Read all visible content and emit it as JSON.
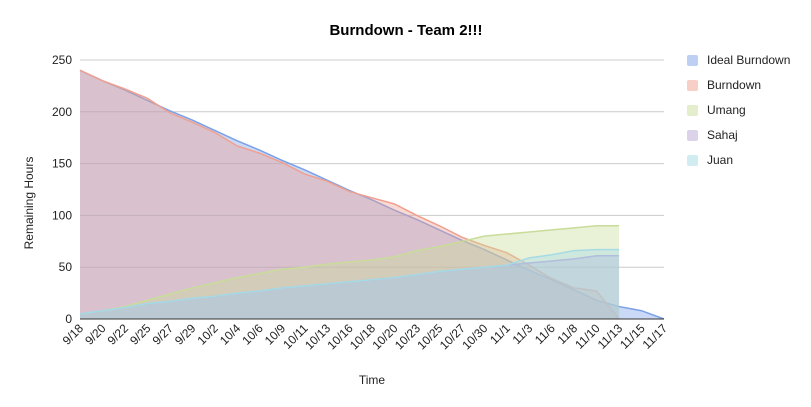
{
  "chart_data": {
    "type": "area",
    "title": "Burndown - Team 2!!!",
    "xlabel": "Time",
    "ylabel": "Remaining Hours",
    "ylim": [
      0,
      250
    ],
    "yticks": [
      0,
      50,
      100,
      150,
      200,
      250
    ],
    "grid": true,
    "legend_position": "right",
    "categories": [
      "9/18",
      "9/20",
      "9/22",
      "9/25",
      "9/27",
      "9/29",
      "10/2",
      "10/4",
      "10/6",
      "10/9",
      "10/11",
      "10/13",
      "10/16",
      "10/18",
      "10/20",
      "10/23",
      "10/25",
      "10/27",
      "10/30",
      "11/1",
      "11/3",
      "11/6",
      "11/8",
      "11/10",
      "11/13",
      "11/15",
      "11/17"
    ],
    "series": [
      {
        "name": "Ideal Burndown",
        "color": "#7ba0e8",
        "values": [
          240,
          230,
          221,
          211,
          201,
          192,
          182,
          172,
          163,
          153,
          144,
          134,
          124,
          115,
          105,
          96,
          86,
          76,
          67,
          57,
          47,
          38,
          28,
          18,
          12,
          8,
          0
        ]
      },
      {
        "name": "Burndown",
        "color": "#f0a090",
        "values": [
          240,
          230,
          222,
          213,
          199,
          190,
          180,
          167,
          160,
          151,
          140,
          133,
          123,
          117,
          111,
          100,
          90,
          79,
          71,
          64,
          52,
          39,
          30,
          27,
          0,
          null,
          null
        ]
      },
      {
        "name": "Umang",
        "color": "#c9dc9a",
        "values": [
          5,
          8,
          12,
          18,
          24,
          30,
          35,
          40,
          44,
          48,
          50,
          53,
          55,
          57,
          60,
          66,
          70,
          75,
          80,
          82,
          84,
          86,
          88,
          90,
          90,
          null,
          null
        ]
      },
      {
        "name": "Sahaj",
        "color": "#b9a8d8",
        "values": [
          5,
          8,
          11,
          15,
          17,
          20,
          22,
          25,
          27,
          30,
          32,
          34,
          36,
          38,
          40,
          43,
          46,
          48,
          50,
          52,
          54,
          56,
          58,
          61,
          61,
          null,
          null
        ]
      },
      {
        "name": "Juan",
        "color": "#a6dbe6",
        "values": [
          5,
          8,
          11,
          15,
          17,
          20,
          22,
          25,
          27,
          30,
          32,
          34,
          36,
          38,
          40,
          43,
          46,
          48,
          50,
          52,
          59,
          62,
          66,
          67,
          67,
          null,
          null
        ]
      }
    ]
  }
}
